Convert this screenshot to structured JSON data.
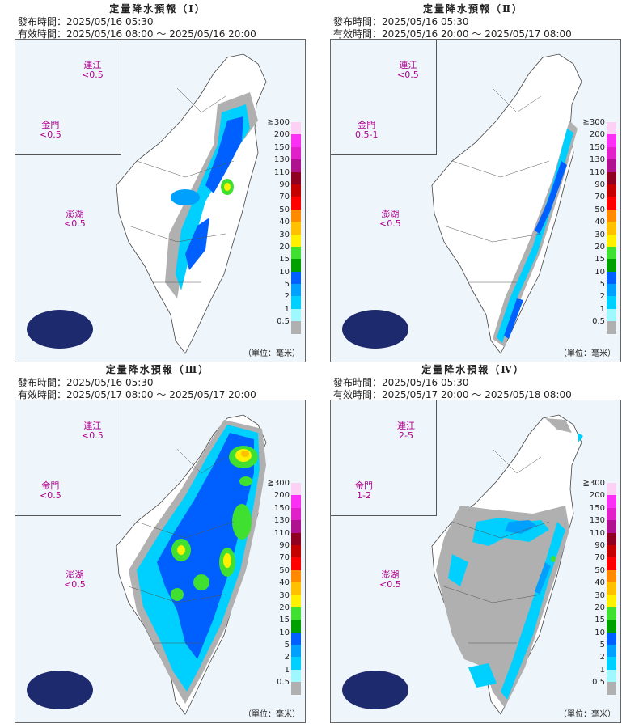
{
  "panels": [
    {
      "title": "定量降水預報（Ⅰ）",
      "issue": "發布時間：2025/05/16 05:30",
      "valid": "有效時間：2025/05/16 08:00 ～ 2025/05/16 20:00",
      "islands": {
        "matsu_name": "連江",
        "matsu_val": "<0.5",
        "kinmen_name": "金門",
        "kinmen_val": "<0.5",
        "penghu_name": "澎湖",
        "penghu_val": "<0.5"
      }
    },
    {
      "title": "定量降水預報（Ⅱ）",
      "issue": "發布時間：2025/05/16 05:30",
      "valid": "有效時間：2025/05/16 20:00 ～ 2025/05/17 08:00",
      "islands": {
        "matsu_name": "連江",
        "matsu_val": "<0.5",
        "kinmen_name": "金門",
        "kinmen_val": "0.5-1",
        "penghu_name": "澎湖",
        "penghu_val": "<0.5"
      }
    },
    {
      "title": "定量降水預報（Ⅲ）",
      "issue": "發布時間：2025/05/16 05:30",
      "valid": "有效時間：2025/05/17 08:00 ～ 2025/05/17 20:00",
      "islands": {
        "matsu_name": "連江",
        "matsu_val": "<0.5",
        "kinmen_name": "金門",
        "kinmen_val": "<0.5",
        "penghu_name": "澎湖",
        "penghu_val": "<0.5"
      }
    },
    {
      "title": "定量降水預報（Ⅳ）",
      "issue": "發布時間：2025/05/16 05:30",
      "valid": "有效時間：2025/05/17 20:00 ～ 2025/05/18 08:00",
      "islands": {
        "matsu_name": "連江",
        "matsu_val": "2-5",
        "kinmen_name": "金門",
        "kinmen_val": "1-2",
        "penghu_name": "澎湖",
        "penghu_val": "<0.5"
      }
    }
  ],
  "legend": {
    "unit": "（單位：毫米）",
    "labels": [
      "≧300",
      "200",
      "150",
      "130",
      "110",
      "90",
      "70",
      "50",
      "40",
      "30",
      "20",
      "15",
      "10",
      "5",
      "2",
      "1",
      "0.5"
    ],
    "colors": [
      "#fdd0f5",
      "#fb30f5",
      "#e020c8",
      "#b0128f",
      "#900020",
      "#c40000",
      "#ff0000",
      "#ff8a00",
      "#ffc000",
      "#fff000",
      "#40e030",
      "#00a000",
      "#0060ff",
      "#00a0ff",
      "#00d0ff",
      "#a0f8ff",
      "#b0b0b0"
    ]
  },
  "colors": {
    "gray": "#b0b0b0",
    "light_cyan": "#a0f8ff",
    "cyan": "#00d0ff",
    "sky": "#00a0ff",
    "blue": "#0060ff",
    "green": "#40e030",
    "dark_green": "#00a000",
    "yellow": "#fff000",
    "orange": "#ffc000"
  }
}
